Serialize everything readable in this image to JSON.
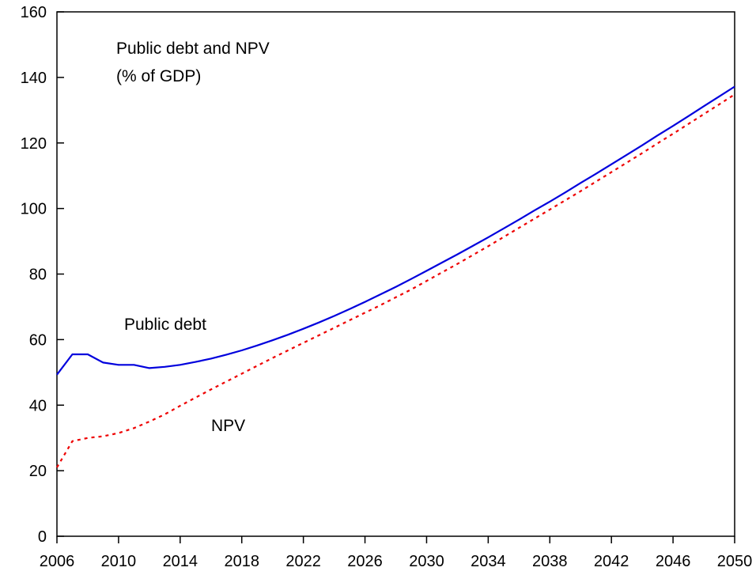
{
  "chart_data": {
    "type": "line",
    "title": [
      "Public debt and NPV",
      "(% of GDP)"
    ],
    "xlabel": "",
    "ylabel": "",
    "xlim": [
      2006,
      2050
    ],
    "ylim": [
      0,
      160
    ],
    "x_ticks": [
      "2006",
      "2010",
      "2014",
      "2018",
      "2022",
      "2026",
      "2030",
      "2034",
      "2038",
      "2042",
      "2046",
      "2050"
    ],
    "y_ticks": [
      "0",
      "20",
      "40",
      "60",
      "80",
      "100",
      "120",
      "140",
      "160"
    ],
    "grid": false,
    "legend": "none",
    "x": [
      2006,
      2007,
      2008,
      2009,
      2010,
      2011,
      2012,
      2013,
      2014,
      2015,
      2016,
      2017,
      2018,
      2019,
      2020,
      2021,
      2022,
      2023,
      2024,
      2025,
      2026,
      2027,
      2028,
      2029,
      2030,
      2031,
      2032,
      2033,
      2034,
      2035,
      2036,
      2037,
      2038,
      2039,
      2040,
      2041,
      2042,
      2043,
      2044,
      2045,
      2046,
      2047,
      2048,
      2049,
      2050
    ],
    "series": [
      {
        "name": "Public debt",
        "color": "#0000dd",
        "style": "solid",
        "values": [
          49.3,
          55.5,
          55.5,
          53.0,
          52.3,
          52.3,
          51.3,
          51.7,
          52.3,
          53.2,
          54.2,
          55.4,
          56.7,
          58.2,
          59.8,
          61.5,
          63.3,
          65.2,
          67.2,
          69.3,
          71.5,
          73.8,
          76.1,
          78.5,
          81.0,
          83.5,
          86.0,
          88.6,
          91.2,
          93.9,
          96.6,
          99.4,
          102.1,
          104.9,
          107.8,
          110.6,
          113.5,
          116.4,
          119.3,
          122.3,
          125.2,
          128.2,
          131.2,
          134.2,
          137.2
        ]
      },
      {
        "name": "NPV",
        "color": "#ee0000",
        "style": "dotted",
        "values": [
          21.0,
          29.0,
          30.0,
          30.5,
          31.5,
          33.0,
          35.0,
          37.2,
          39.8,
          42.3,
          44.8,
          47.2,
          49.6,
          52.0,
          54.4,
          56.7,
          59.0,
          61.3,
          63.6,
          65.9,
          68.2,
          70.5,
          72.9,
          75.3,
          77.9,
          80.5,
          83.1,
          85.8,
          88.5,
          91.3,
          94.1,
          96.9,
          99.7,
          102.5,
          105.3,
          108.2,
          111.1,
          114.0,
          116.9,
          119.9,
          122.8,
          125.8,
          128.8,
          131.8,
          134.8
        ]
      }
    ]
  }
}
